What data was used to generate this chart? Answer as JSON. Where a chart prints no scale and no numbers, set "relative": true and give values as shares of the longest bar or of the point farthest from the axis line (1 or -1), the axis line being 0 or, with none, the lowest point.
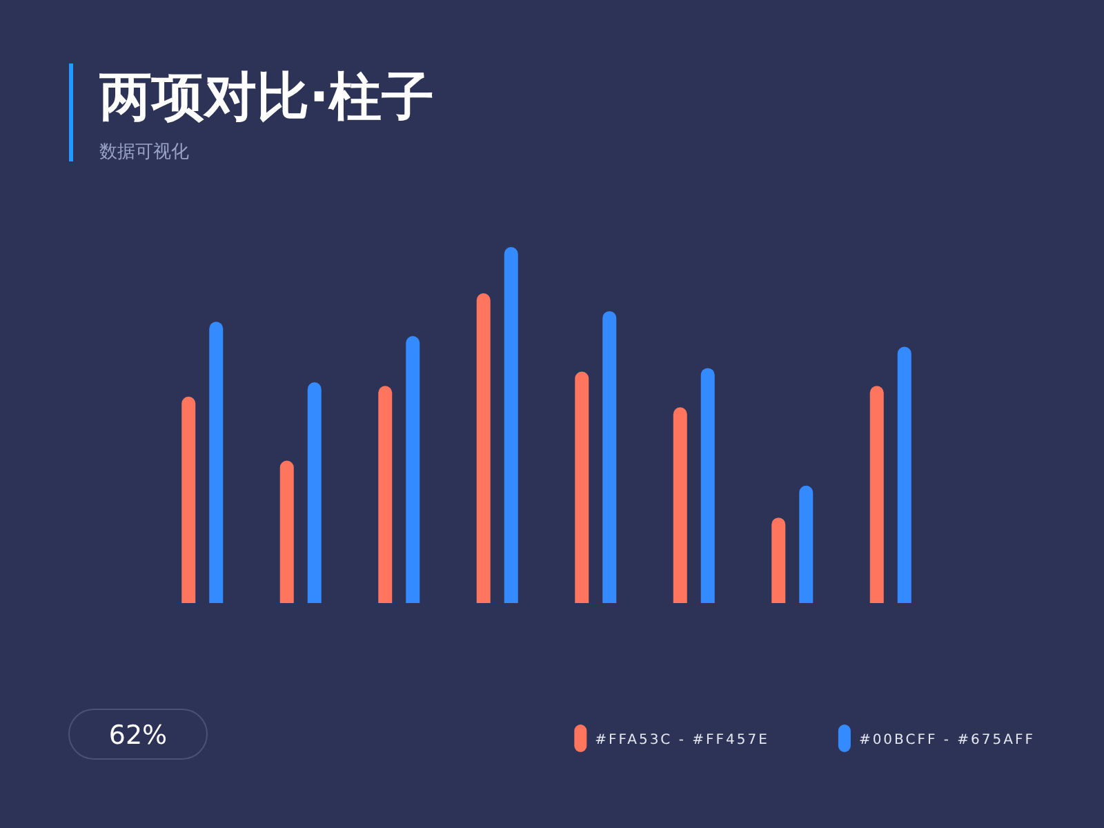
{
  "chart_data": {
    "type": "bar",
    "title": "两项对比·柱子",
    "subtitle": "数据可视化",
    "categories": [
      null,
      null,
      null,
      null,
      null,
      null,
      null,
      null
    ],
    "relative": true,
    "series": [
      {
        "name": "#FFA53C - #FF457E",
        "color": "#ff755d",
        "values": [
          0.58,
          0.4,
          0.61,
          0.87,
          0.65,
          0.55,
          0.24,
          0.61
        ]
      },
      {
        "name": "#00BCFF - #675AFF",
        "color": "#338bff",
        "values": [
          0.79,
          0.62,
          0.75,
          1.0,
          0.82,
          0.66,
          0.33,
          0.72
        ]
      }
    ],
    "legend": "bottom right",
    "annotations": [
      "62%"
    ]
  }
}
